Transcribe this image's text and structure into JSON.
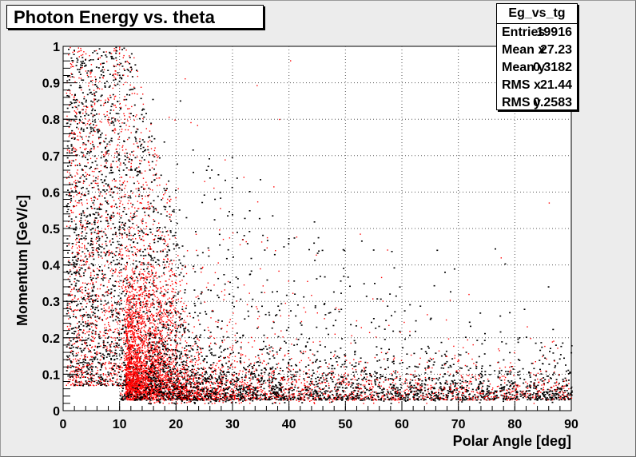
{
  "chart_data": {
    "type": "scatter",
    "title": "Photon Energy vs. theta",
    "xlabel": "Polar Angle [deg]",
    "ylabel": "Momentum [GeV/c]",
    "xlim": [
      0,
      90
    ],
    "ylim": [
      0,
      1
    ],
    "grid": true,
    "x_ticks": [
      "0",
      "10",
      "20",
      "30",
      "40",
      "50",
      "60",
      "70",
      "80",
      "90"
    ],
    "y_ticks": [
      "0",
      "0.1",
      "0.2",
      "0.3",
      "0.4",
      "0.5",
      "0.6",
      "0.7",
      "0.8",
      "0.9",
      "1"
    ],
    "series": [
      {
        "color": "#000000"
      },
      {
        "color": "#ff0000"
      }
    ],
    "stats": {
      "name": "Eg_vs_tg",
      "rows": [
        {
          "label": "Entries",
          "value": "19916"
        },
        {
          "label": "Mean x",
          "value": "27.23"
        },
        {
          "label": "Mean y",
          "value": "0.3182"
        },
        {
          "label": "RMS x",
          "value": "21.44"
        },
        {
          "label": "RMS y",
          "value": "0.2583"
        }
      ]
    }
  }
}
